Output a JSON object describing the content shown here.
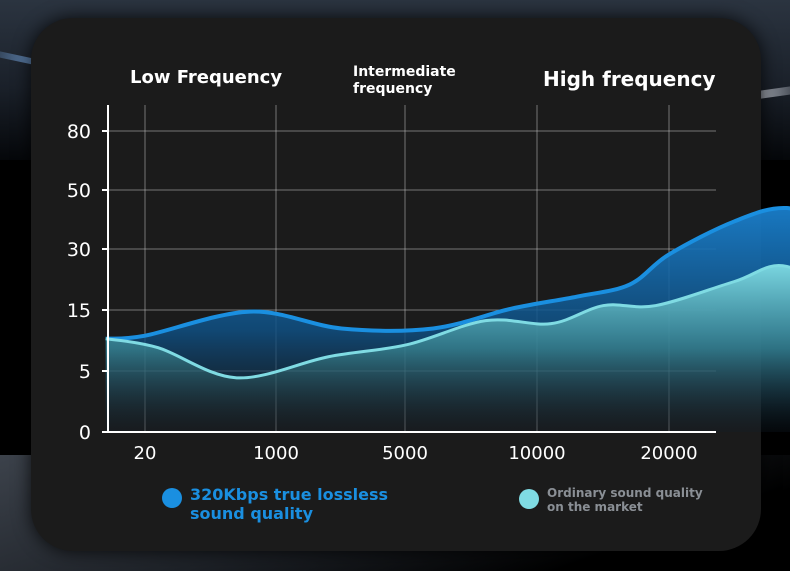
{
  "colors": {
    "series_lossless": "#1a8fe0",
    "series_market": "#7fdbe3",
    "background_card": "#1b1b1b",
    "grid": "#bfbfbf",
    "text": "#ffffff"
  },
  "chart_data": {
    "type": "area",
    "regions": [
      "Low Frequency",
      "Intermediate frequency",
      "High frequency"
    ],
    "x_ticks": [
      "20",
      "1000",
      "5000",
      "10000",
      "20000"
    ],
    "y_ticks": [
      "0",
      "5",
      "15",
      "30",
      "50",
      "80"
    ],
    "grid": true,
    "legend_position": "bottom",
    "x": [
      "20",
      "",
      "1000",
      "",
      "5000",
      "",
      "10000",
      "",
      "20000",
      ""
    ],
    "series": [
      {
        "name": "320Kbps true lossless sound quality",
        "color": "#1a8fe0",
        "values_tick_index": [
          [
            -0.3,
            1.55
          ],
          [
            0.0,
            1.6
          ],
          [
            0.8,
            2.0
          ],
          [
            1.5,
            1.72
          ],
          [
            2.2,
            1.72
          ],
          [
            2.8,
            2.05
          ],
          [
            3.3,
            2.25
          ],
          [
            3.7,
            2.45
          ],
          [
            4.0,
            2.95
          ],
          [
            4.5,
            3.5
          ],
          [
            4.9,
            3.72
          ],
          [
            5.3,
            3.4
          ],
          [
            5.45,
            3.1
          ]
        ]
      },
      {
        "name": "Ordinary sound quality on the market",
        "color": "#7fdbe3",
        "values_tick_index": [
          [
            -0.3,
            1.55
          ],
          [
            0.1,
            1.4
          ],
          [
            0.7,
            0.9
          ],
          [
            1.4,
            1.25
          ],
          [
            2.0,
            1.45
          ],
          [
            2.6,
            1.85
          ],
          [
            3.1,
            1.8
          ],
          [
            3.5,
            2.1
          ],
          [
            3.9,
            2.1
          ],
          [
            4.5,
            2.5
          ],
          [
            4.9,
            2.75
          ],
          [
            5.45,
            2.05
          ]
        ]
      }
    ]
  },
  "legend": {
    "lossless": "320Kbps true lossless sound quality",
    "market": "Ordinary sound quality on the market"
  }
}
